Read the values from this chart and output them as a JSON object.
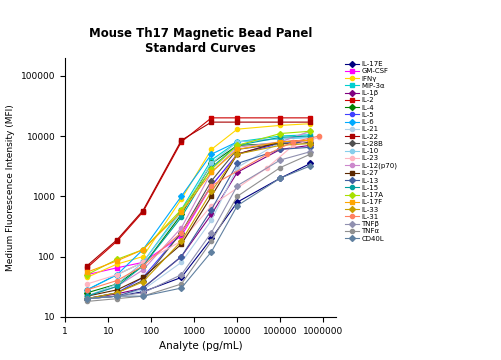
{
  "title": "Mouse Th17 Magnetic Bead Panel\nStandard Curves",
  "xlabel": "Analyte (pg/mL)",
  "ylabel": "Medium Fluorescence Intensity (MFI)",
  "xlim": [
    1,
    2000000
  ],
  "ylim": [
    10,
    200000
  ],
  "series": [
    {
      "label": "IL-17E",
      "color": "#000080",
      "marker": "D",
      "x": [
        3.2,
        16,
        64,
        500,
        2500,
        10000,
        100000,
        500000
      ],
      "y": [
        20,
        22,
        26,
        45,
        200,
        800,
        2000,
        3500
      ]
    },
    {
      "label": "GM-CSF",
      "color": "#FF00FF",
      "marker": "s",
      "x": [
        3.2,
        16,
        64,
        500,
        2500,
        10000,
        100000,
        500000
      ],
      "y": [
        50,
        65,
        80,
        220,
        1500,
        5000,
        8000,
        8500
      ]
    },
    {
      "label": "IFNγ",
      "color": "#FFD700",
      "marker": "o",
      "x": [
        3.2,
        16,
        64,
        500,
        2500,
        10000,
        100000,
        500000
      ],
      "y": [
        45,
        75,
        100,
        900,
        6000,
        13000,
        15000,
        16000
      ]
    },
    {
      "label": "MIP-3α",
      "color": "#00CFCF",
      "marker": "s",
      "x": [
        3.2,
        16,
        64,
        500,
        2500,
        10000,
        100000,
        500000
      ],
      "y": [
        28,
        50,
        80,
        600,
        4000,
        8000,
        10000,
        10500
      ]
    },
    {
      "label": "IL-1β",
      "color": "#800080",
      "marker": "D",
      "x": [
        3.2,
        16,
        64,
        500,
        2500,
        10000,
        100000,
        500000
      ],
      "y": [
        20,
        24,
        30,
        100,
        500,
        2500,
        6000,
        7000
      ]
    },
    {
      "label": "IL-2",
      "color": "#CC0000",
      "marker": "s",
      "x": [
        3.2,
        16,
        64,
        500,
        2500,
        10000,
        100000,
        500000
      ],
      "y": [
        65,
        180,
        550,
        8000,
        20000,
        20000,
        20000,
        20000
      ]
    },
    {
      "label": "IL-4",
      "color": "#008000",
      "marker": "D",
      "x": [
        3.2,
        16,
        64,
        500,
        2500,
        10000,
        100000,
        500000
      ],
      "y": [
        25,
        35,
        70,
        500,
        3500,
        7000,
        7500,
        7800
      ]
    },
    {
      "label": "IL-5",
      "color": "#4040FF",
      "marker": "o",
      "x": [
        3.2,
        16,
        64,
        500,
        2500,
        10000,
        100000,
        500000
      ],
      "y": [
        20,
        25,
        45,
        250,
        1500,
        5000,
        7500,
        8000
      ]
    },
    {
      "label": "IL-6",
      "color": "#00AAFF",
      "marker": "D",
      "x": [
        3.2,
        16,
        64,
        500,
        2500,
        10000,
        100000,
        500000
      ],
      "y": [
        28,
        50,
        130,
        1000,
        5000,
        8000,
        9000,
        9500
      ]
    },
    {
      "label": "IL-21",
      "color": "#B0D0E8",
      "marker": "o",
      "x": [
        3.2,
        16,
        64,
        500,
        2500,
        10000,
        100000,
        500000
      ],
      "y": [
        20,
        22,
        28,
        80,
        400,
        3000,
        8000,
        12000
      ]
    },
    {
      "label": "IL-22",
      "color": "#AA0000",
      "marker": "s",
      "x": [
        3.2,
        16,
        64,
        500,
        2500,
        10000,
        100000,
        500000
      ],
      "y": [
        70,
        190,
        580,
        8500,
        17000,
        17000,
        17000,
        17000
      ]
    },
    {
      "label": "IL-28B",
      "color": "#505050",
      "marker": "D",
      "x": [
        3.2,
        16,
        64,
        500,
        2500,
        10000,
        100000,
        500000
      ],
      "y": [
        20,
        25,
        40,
        250,
        1800,
        6000,
        7500,
        7800
      ]
    },
    {
      "label": "IL-10",
      "color": "#87CEEB",
      "marker": "o",
      "x": [
        3.2,
        16,
        64,
        500,
        2500,
        10000,
        100000,
        500000
      ],
      "y": [
        22,
        35,
        80,
        550,
        3500,
        8000,
        9000,
        9500
      ]
    },
    {
      "label": "IL-23",
      "color": "#FFB6C1",
      "marker": "o",
      "x": [
        3.2,
        16,
        64,
        500,
        2500,
        50000,
        200000,
        800000
      ],
      "y": [
        35,
        50,
        80,
        180,
        700,
        3000,
        7000,
        9500
      ]
    },
    {
      "label": "IL-12(p70)",
      "color": "#CC88CC",
      "marker": "o",
      "x": [
        3.2,
        16,
        64,
        500,
        2500,
        10000,
        100000,
        500000
      ],
      "y": [
        22,
        32,
        60,
        300,
        2500,
        6500,
        8000,
        12000
      ]
    },
    {
      "label": "IL-27",
      "color": "#5C2800",
      "marker": "s",
      "x": [
        3.2,
        16,
        64,
        500,
        2500,
        10000,
        100000,
        500000
      ],
      "y": [
        22,
        28,
        45,
        160,
        1000,
        5000,
        8000,
        8500
      ]
    },
    {
      "label": "IL-13",
      "color": "#4060A0",
      "marker": "D",
      "x": [
        3.2,
        16,
        64,
        500,
        2500,
        10000,
        100000,
        500000
      ],
      "y": [
        20,
        22,
        30,
        100,
        600,
        3500,
        6000,
        6500
      ]
    },
    {
      "label": "IL-15",
      "color": "#00A0A0",
      "marker": "o",
      "x": [
        3.2,
        16,
        64,
        500,
        2500,
        10000,
        100000,
        500000
      ],
      "y": [
        22,
        32,
        70,
        450,
        3000,
        7000,
        9500,
        10000
      ]
    },
    {
      "label": "IL-17A",
      "color": "#A8E000",
      "marker": "D",
      "x": [
        3.2,
        16,
        64,
        500,
        2500,
        10000,
        100000,
        500000
      ],
      "y": [
        50,
        90,
        130,
        600,
        2800,
        7000,
        11000,
        12000
      ]
    },
    {
      "label": "IL-17F",
      "color": "#FFA500",
      "marker": "s",
      "x": [
        3.2,
        16,
        64,
        500,
        2500,
        10000,
        100000,
        500000
      ],
      "y": [
        55,
        85,
        130,
        550,
        2500,
        6000,
        8000,
        8500
      ]
    },
    {
      "label": "IL-33",
      "color": "#C8A000",
      "marker": "D",
      "x": [
        3.2,
        16,
        64,
        500,
        2500,
        10000,
        100000,
        500000
      ],
      "y": [
        20,
        25,
        38,
        180,
        1200,
        5000,
        7000,
        7500
      ]
    },
    {
      "label": "IL-31",
      "color": "#FF8060",
      "marker": "o",
      "x": [
        3.2,
        16,
        64,
        500,
        2500,
        50000,
        200000,
        800000
      ],
      "y": [
        28,
        40,
        70,
        250,
        1500,
        5000,
        8000,
        10000
      ]
    },
    {
      "label": "TNFβ",
      "color": "#9090B0",
      "marker": "D",
      "x": [
        3.2,
        16,
        64,
        500,
        2500,
        10000,
        100000,
        500000
      ],
      "y": [
        20,
        22,
        25,
        50,
        250,
        1500,
        4000,
        5500
      ]
    },
    {
      "label": "TNFα",
      "color": "#909090",
      "marker": "o",
      "x": [
        3.2,
        16,
        64,
        500,
        2500,
        10000,
        100000,
        500000
      ],
      "y": [
        18,
        20,
        22,
        35,
        180,
        1000,
        3000,
        5000
      ]
    },
    {
      "label": "CD40L",
      "color": "#6080A0",
      "marker": "D",
      "x": [
        3.2,
        16,
        64,
        500,
        2500,
        10000,
        100000,
        500000
      ],
      "y": [
        20,
        22,
        22,
        30,
        120,
        700,
        2000,
        3200
      ]
    }
  ]
}
